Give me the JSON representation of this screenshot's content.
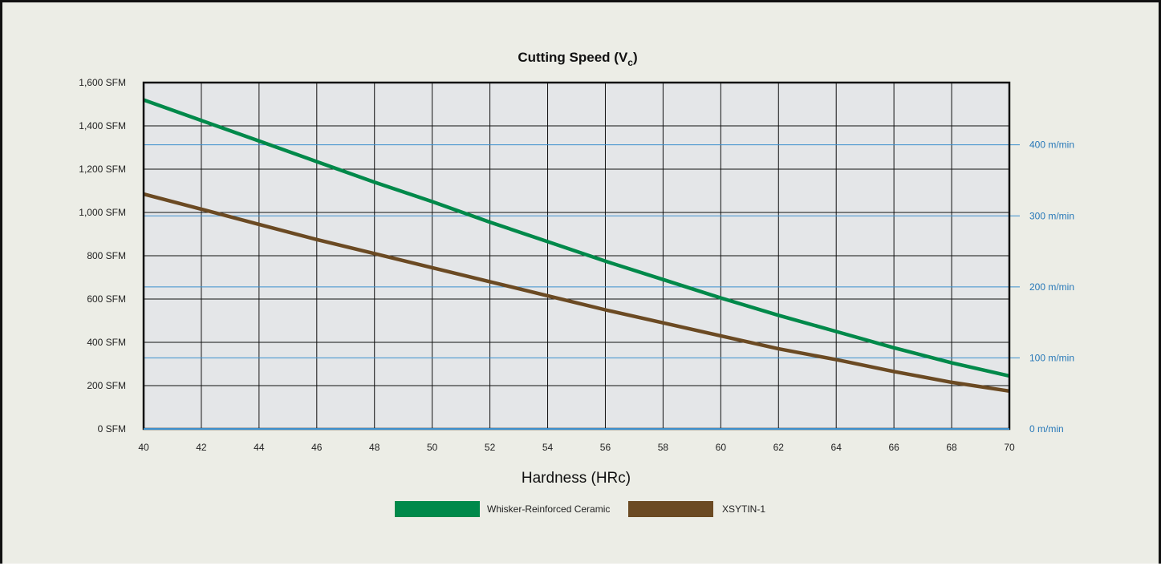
{
  "chart_data": {
    "type": "line",
    "title": "Cutting Speed (V",
    "title_subscript": "c",
    "title_close": ")",
    "xlabel": "Hardness (HRc)",
    "x_ticks": [
      40,
      42,
      44,
      46,
      48,
      50,
      52,
      54,
      56,
      58,
      60,
      62,
      64,
      66,
      68,
      70
    ],
    "xlim": [
      40,
      70
    ],
    "y_unit_left": "SFM",
    "ylim": [
      0,
      1600
    ],
    "y_ticks_left": [
      {
        "value": 0,
        "label": "0 SFM"
      },
      {
        "value": 200,
        "label": "200 SFM"
      },
      {
        "value": 400,
        "label": "400 SFM"
      },
      {
        "value": 600,
        "label": "600 SFM"
      },
      {
        "value": 800,
        "label": "800 SFM"
      },
      {
        "value": 1000,
        "label": "1,000 SFM"
      },
      {
        "value": 1200,
        "label": "1,200 SFM"
      },
      {
        "value": 1400,
        "label": "1,400 SFM"
      },
      {
        "value": 1600,
        "label": "1,600 SFM"
      }
    ],
    "y_unit_right": "m/min",
    "ylim_right": [
      0,
      487.7
    ],
    "y_ticks_right": [
      {
        "value": 0,
        "label": "0 m/min"
      },
      {
        "value": 100,
        "label": "100 m/min"
      },
      {
        "value": 200,
        "label": "200 m/min"
      },
      {
        "value": 300,
        "label": "300 m/min"
      },
      {
        "value": 400,
        "label": "400 m/min"
      }
    ],
    "grid": true,
    "legend_position": "bottom",
    "series": [
      {
        "name": "Whisker-Reinforced Ceramic",
        "color": "#00894a",
        "x": [
          40,
          42,
          44,
          46,
          48,
          50,
          52,
          54,
          56,
          58,
          60,
          62,
          64,
          66,
          68,
          70
        ],
        "values": [
          1520,
          1425,
          1330,
          1235,
          1140,
          1050,
          955,
          865,
          775,
          690,
          605,
          525,
          450,
          375,
          305,
          245
        ]
      },
      {
        "name": "XSYTIN-1",
        "color": "#6b4a23",
        "x": [
          40,
          42,
          44,
          46,
          48,
          50,
          52,
          54,
          56,
          58,
          60,
          62,
          64,
          66,
          68,
          70
        ],
        "values": [
          1085,
          1015,
          945,
          875,
          810,
          745,
          680,
          615,
          550,
          490,
          430,
          370,
          320,
          265,
          215,
          175
        ]
      }
    ]
  },
  "colors": {
    "background": "#ecede6",
    "plot_background": "#e4e6e8",
    "grid_black": "#111111",
    "grid_blue": "#3b8fcd",
    "right_axis_text": "#2778b8"
  }
}
